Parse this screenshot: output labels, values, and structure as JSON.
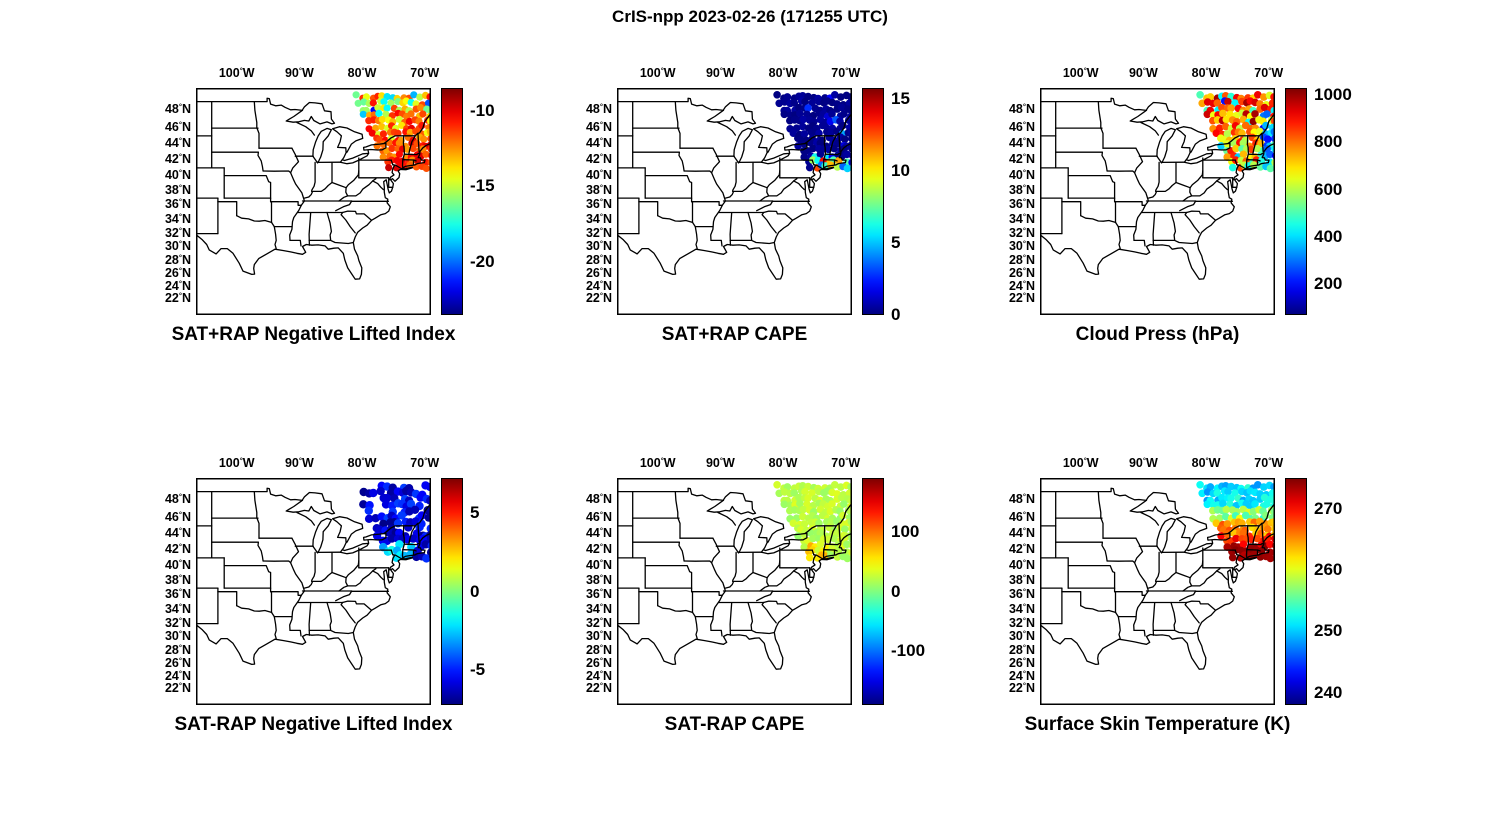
{
  "title": "CrIS-npp 2023-02-26 (171255 UTC)",
  "instrument": "CrIS-npp",
  "date": "2023-02-26",
  "time": "171255 UTC",
  "axes": {
    "lon_tick_labels": [
      "100°W",
      "90°W",
      "80°W",
      "70°W"
    ],
    "lon_tick_values": [
      -100,
      -90,
      -80,
      -70
    ],
    "lat_tick_labels": [
      "48°N",
      "46°N",
      "44°N",
      "42°N",
      "40°N",
      "38°N",
      "36°N",
      "34°N",
      "32°N",
      "30°N",
      "28°N",
      "26°N",
      "24°N",
      "22°N"
    ],
    "lat_tick_values": [
      48,
      46,
      44,
      42,
      40,
      38,
      36,
      34,
      32,
      30,
      28,
      26,
      24,
      22
    ]
  },
  "map_extent": {
    "lon_min": -106.5,
    "lon_max": -69.0,
    "lat_min": 19.5,
    "lat_max": 50.5
  },
  "swath": {
    "lat_max": 49.55,
    "lat_min": 40.75,
    "lon_max": -68.75,
    "lon_min_north": -80.95,
    "lon_min_south": -75.55
  },
  "chart_data": [
    {
      "type": "scatter",
      "title": "SAT+RAP Negative Lifted Index",
      "colormap": "jet",
      "vmin": -23.5,
      "vmax": -8.5,
      "colorbar_ticks": [
        -10,
        -15,
        -20
      ],
      "colorbar_tick_labels": [
        "-10",
        "-15",
        "-20"
      ],
      "marker_radius": 3.6,
      "density": 1,
      "field_regions": [
        {
          "lat_min": 47.5,
          "mean": -14.5,
          "spread": 4.5,
          "outlier_frac": 0.08,
          "outlier_mean": -20,
          "outlier_spread": 2
        },
        {
          "lat_min": 44.5,
          "mean": -12.5,
          "spread": 2.5
        },
        {
          "lat_min": 42.0,
          "mean": -11.2,
          "spread": 1.6
        },
        {
          "mean": -10.6,
          "spread": 1.2
        }
      ]
    },
    {
      "type": "scatter",
      "title": "SAT+RAP CAPE",
      "colormap": "jet",
      "vmin": 0,
      "vmax": 15.8,
      "colorbar_ticks": [
        15,
        10,
        5,
        0
      ],
      "colorbar_tick_labels": [
        "15",
        "10",
        "5",
        "0"
      ],
      "marker_radius": 3.8,
      "density": 1,
      "field_regions": [
        {
          "lat_max": 42.4,
          "lon_min": -75.5,
          "mean": 8,
          "spread": 7
        },
        {
          "mean": 0.25,
          "spread": 0.35,
          "outlier_frac": 0.05,
          "outlier_mean": 3,
          "outlier_spread": 2
        }
      ]
    },
    {
      "type": "scatter",
      "title": "Cloud Press (hPa)",
      "colormap": "jet",
      "vmin": 70,
      "vmax": 1030,
      "colorbar_ticks": [
        1000,
        800,
        600,
        400,
        200
      ],
      "colorbar_tick_labels": [
        "1000",
        "800",
        "600",
        "400",
        "200"
      ],
      "marker_radius": 3.8,
      "density": 1,
      "field_regions": [
        {
          "lat_min": 46.3,
          "mean": 820,
          "spread": 200,
          "outlier_frac": 0.15,
          "outlier_mean": 350,
          "outlier_spread": 180
        },
        {
          "lat_min": 42.5,
          "lon_min": -71.2,
          "mean": 330,
          "spread": 170
        },
        {
          "lat_min": 44.0,
          "mean": 750,
          "spread": 180
        },
        {
          "mean": 620,
          "spread": 280
        }
      ]
    },
    {
      "type": "scatter",
      "title": "SAT-RAP Negative Lifted Index",
      "colormap": "jet",
      "vmin": -7.2,
      "vmax": 7.2,
      "colorbar_ticks": [
        5,
        0,
        -5
      ],
      "colorbar_tick_labels": [
        "5",
        "0",
        "-5"
      ],
      "marker_radius": 4.2,
      "density": 0.65,
      "field_regions": [
        {
          "lat_max": 43.0,
          "lon_min": -77.5,
          "lon_max": -71.5,
          "mean": -2.3,
          "spread": 0.9
        },
        {
          "mean": -5.8,
          "spread": 1.3
        }
      ]
    },
    {
      "type": "scatter",
      "title": "SAT-RAP CAPE",
      "colormap": "jet",
      "vmin": -190,
      "vmax": 190,
      "colorbar_ticks": [
        100,
        0,
        -100
      ],
      "colorbar_tick_labels": [
        "100",
        "0",
        "-100"
      ],
      "marker_radius": 3.8,
      "density": 1,
      "field_regions": [
        {
          "lat_max": 42.6,
          "lon_min": -76.0,
          "lon_max": -72.5,
          "mean": 55,
          "spread": 30
        },
        {
          "mean": 22,
          "spread": 14
        }
      ]
    },
    {
      "type": "scatter",
      "title": "Surface Skin Temperature (K)",
      "colormap": "jet",
      "vmin": 238,
      "vmax": 275,
      "colorbar_ticks": [
        270,
        260,
        250,
        240
      ],
      "colorbar_tick_labels": [
        "270",
        "260",
        "250",
        "240"
      ],
      "marker_radius": 3.8,
      "density": 1,
      "field_regions": [
        {
          "lat_min": 47.3,
          "mean": 251,
          "spread": 3
        },
        {
          "lat_min": 45.8,
          "mean": 257,
          "spread": 4
        },
        {
          "lat_min": 43.8,
          "mean": 265,
          "spread": 3
        },
        {
          "lat_min": 42.6,
          "mean": 269.5,
          "spread": 2
        },
        {
          "mean": 274,
          "spread": 1.2
        }
      ]
    }
  ]
}
